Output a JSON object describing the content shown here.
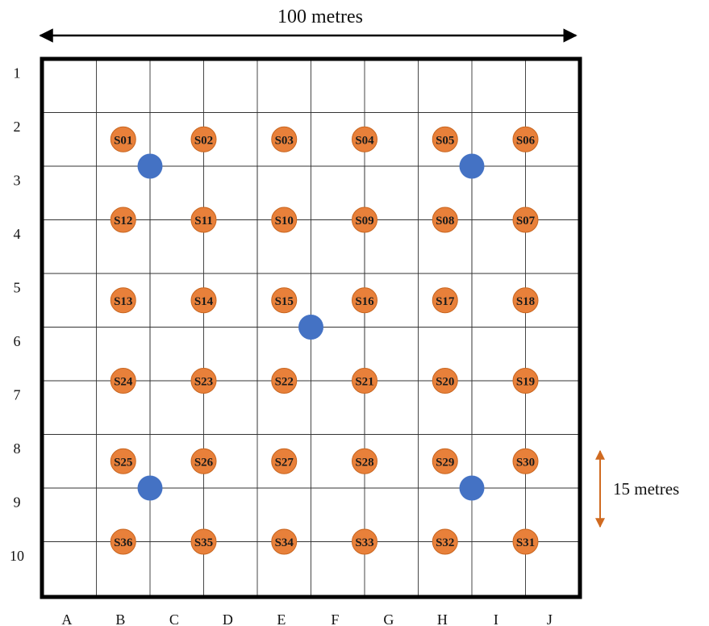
{
  "title_dimension": {
    "text": "100 metres"
  },
  "scale_dimension": {
    "text": "15 metres"
  },
  "colors": {
    "grid_line": "#333333",
    "border": "#000000",
    "sample_point": "#E8803A",
    "sample_point_stroke": "#C8651F",
    "blue_point": "#4472C4",
    "dim_arrow_top": "#000000",
    "dim_arrow_side": "#D06A20"
  },
  "columns": [
    "A",
    "B",
    "C",
    "D",
    "E",
    "F",
    "G",
    "H",
    "I",
    "J"
  ],
  "rows": [
    "1",
    "2",
    "3",
    "4",
    "5",
    "6",
    "7",
    "8",
    "9",
    "10"
  ],
  "samples": [
    {
      "id": "S01",
      "col": 1.5,
      "row": 1.5
    },
    {
      "id": "S02",
      "col": 3.0,
      "row": 1.5
    },
    {
      "id": "S03",
      "col": 4.5,
      "row": 1.5
    },
    {
      "id": "S04",
      "col": 6.0,
      "row": 1.5
    },
    {
      "id": "S05",
      "col": 7.5,
      "row": 1.5
    },
    {
      "id": "S06",
      "col": 9.0,
      "row": 1.5
    },
    {
      "id": "S12",
      "col": 1.5,
      "row": 3.0
    },
    {
      "id": "S11",
      "col": 3.0,
      "row": 3.0
    },
    {
      "id": "S10",
      "col": 4.5,
      "row": 3.0
    },
    {
      "id": "S09",
      "col": 6.0,
      "row": 3.0
    },
    {
      "id": "S08",
      "col": 7.5,
      "row": 3.0
    },
    {
      "id": "S07",
      "col": 9.0,
      "row": 3.0
    },
    {
      "id": "S13",
      "col": 1.5,
      "row": 4.5
    },
    {
      "id": "S14",
      "col": 3.0,
      "row": 4.5
    },
    {
      "id": "S15",
      "col": 4.5,
      "row": 4.5
    },
    {
      "id": "S16",
      "col": 6.0,
      "row": 4.5
    },
    {
      "id": "S17",
      "col": 7.5,
      "row": 4.5
    },
    {
      "id": "S18",
      "col": 9.0,
      "row": 4.5
    },
    {
      "id": "S24",
      "col": 1.5,
      "row": 6.0
    },
    {
      "id": "S23",
      "col": 3.0,
      "row": 6.0
    },
    {
      "id": "S22",
      "col": 4.5,
      "row": 6.0
    },
    {
      "id": "S21",
      "col": 6.0,
      "row": 6.0
    },
    {
      "id": "S20",
      "col": 7.5,
      "row": 6.0
    },
    {
      "id": "S19",
      "col": 9.0,
      "row": 6.0
    },
    {
      "id": "S25",
      "col": 1.5,
      "row": 7.5
    },
    {
      "id": "S26",
      "col": 3.0,
      "row": 7.5
    },
    {
      "id": "S27",
      "col": 4.5,
      "row": 7.5
    },
    {
      "id": "S28",
      "col": 6.0,
      "row": 7.5
    },
    {
      "id": "S29",
      "col": 7.5,
      "row": 7.5
    },
    {
      "id": "S30",
      "col": 9.0,
      "row": 7.5
    },
    {
      "id": "S36",
      "col": 1.5,
      "row": 9.0
    },
    {
      "id": "S35",
      "col": 3.0,
      "row": 9.0
    },
    {
      "id": "S34",
      "col": 4.5,
      "row": 9.0
    },
    {
      "id": "S33",
      "col": 6.0,
      "row": 9.0
    },
    {
      "id": "S32",
      "col": 7.5,
      "row": 9.0
    },
    {
      "id": "S31",
      "col": 9.0,
      "row": 9.0
    }
  ],
  "blue_points": [
    {
      "col": 2.0,
      "row": 2.0
    },
    {
      "col": 8.0,
      "row": 2.0
    },
    {
      "col": 5.0,
      "row": 5.0
    },
    {
      "col": 2.0,
      "row": 8.0
    },
    {
      "col": 8.0,
      "row": 8.0
    }
  ],
  "inner_squares": [
    {
      "col0": 2,
      "row0": 2,
      "col1": 8,
      "row1": 7
    },
    {
      "col0": 4,
      "row0": 2,
      "col1": 6,
      "row1": 7
    }
  ]
}
